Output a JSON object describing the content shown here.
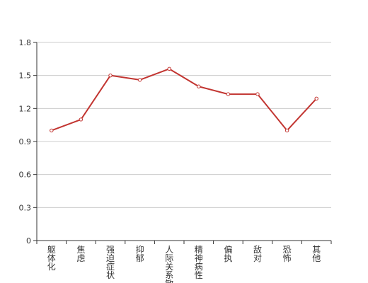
{
  "chart_data": {
    "type": "line",
    "title": "",
    "xlabel": "",
    "ylabel": "",
    "categories": [
      "躯体化",
      "焦虑",
      "强迫症状",
      "抑郁",
      "人际关系敏感",
      "精神病性",
      "偏执",
      "敌对",
      "恐怖",
      "其他"
    ],
    "series": [
      {
        "values": [
          1.0,
          1.1,
          1.5,
          1.46,
          1.56,
          1.4,
          1.33,
          1.33,
          1.0,
          1.29
        ]
      }
    ],
    "ylim": [
      0,
      1.8
    ],
    "yticks": [
      "0",
      "0.3",
      "0.6",
      "0.9",
      "1.2",
      "1.5",
      "1.8"
    ],
    "grid": true,
    "legend": "none",
    "colors": {
      "line": "#c23531",
      "grid": "#cccccc",
      "axis": "#333333",
      "text": "#333333"
    }
  }
}
